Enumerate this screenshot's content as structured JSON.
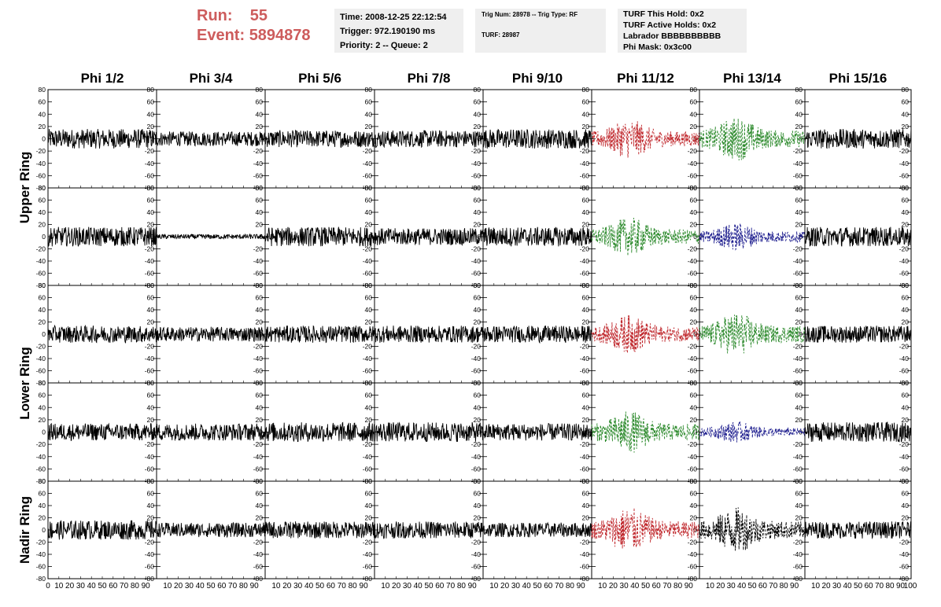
{
  "header": {
    "run_label": "Run:",
    "run_value": "55",
    "event_label": "Event:",
    "event_value": "5894878",
    "time": "Time: 2008-12-25 22:12:54",
    "trigger": "Trigger: 972.190190 ms",
    "priority": "Priority: 2 -- Queue: 2",
    "trig_num": "Trig Num: 28978 -- Trig Type: RF",
    "turf_num": "TURF: 28987",
    "turf_this_hold": "TURF This Hold: 0x2",
    "turf_active_holds": "TURF Active Holds: 0x2",
    "labrador": "Labrador BBBBBBBBBB",
    "phi_mask": "Phi Mask: 0x3c00"
  },
  "colors": {
    "run_text": "#cd5c5c",
    "info_bg": "#efefef",
    "trace_default": "#000000",
    "trace_red": "#c0282d",
    "trace_green": "#2e8b2e",
    "trace_blue": "#1f1f8f"
  },
  "chart_data": {
    "type": "line",
    "columns": [
      "Phi 1/2",
      "Phi 3/4",
      "Phi 5/6",
      "Phi 7/8",
      "Phi 9/10",
      "Phi 11/12",
      "Phi 13/14",
      "Phi 15/16"
    ],
    "row_labels": [
      {
        "text": "Upper Ring",
        "rows": [
          0,
          1
        ]
      },
      {
        "text": "Lower Ring",
        "rows": [
          2,
          3
        ]
      },
      {
        "text": "Nadir Ring",
        "rows": [
          4
        ]
      }
    ],
    "xlim": [
      0,
      100
    ],
    "ylim": [
      -80,
      80
    ],
    "y_ticks": [
      -80,
      -60,
      -40,
      -20,
      0,
      20,
      40,
      60,
      80
    ],
    "x_tick_labels_first": [
      "0",
      "10",
      "20",
      "30",
      "40",
      "50",
      "60",
      "70",
      "80",
      "90"
    ],
    "x_tick_labels_rest": [
      "10",
      "20",
      "30",
      "40",
      "50",
      "60",
      "70",
      "80",
      "90"
    ],
    "x_tick_label_last": "100",
    "panels": [
      [
        {
          "amp": 16,
          "color": "black",
          "dashed": false
        },
        {
          "amp": 12,
          "color": "black",
          "dashed": false
        },
        {
          "amp": 14,
          "color": "black",
          "dashed": false
        },
        {
          "amp": 14,
          "color": "black",
          "dashed": false
        },
        {
          "amp": 16,
          "color": "black",
          "dashed": false
        },
        {
          "amp": 22,
          "color": "red",
          "dashed": true
        },
        {
          "amp": 25,
          "color": "green",
          "dashed": true
        },
        {
          "amp": 16,
          "color": "black",
          "dashed": false
        }
      ],
      [
        {
          "amp": 16,
          "color": "black",
          "dashed": false
        },
        {
          "amp": 4,
          "color": "black",
          "dashed": false
        },
        {
          "amp": 16,
          "color": "black",
          "dashed": false
        },
        {
          "amp": 14,
          "color": "black",
          "dashed": false
        },
        {
          "amp": 16,
          "color": "black",
          "dashed": false
        },
        {
          "amp": 22,
          "color": "green",
          "dashed": true
        },
        {
          "amp": 16,
          "color": "blue",
          "dashed": true
        },
        {
          "amp": 16,
          "color": "black",
          "dashed": false
        }
      ],
      [
        {
          "amp": 14,
          "color": "black",
          "dashed": false
        },
        {
          "amp": 12,
          "color": "black",
          "dashed": false
        },
        {
          "amp": 14,
          "color": "black",
          "dashed": false
        },
        {
          "amp": 14,
          "color": "black",
          "dashed": false
        },
        {
          "amp": 14,
          "color": "black",
          "dashed": false
        },
        {
          "amp": 22,
          "color": "red",
          "dashed": true
        },
        {
          "amp": 25,
          "color": "green",
          "dashed": true
        },
        {
          "amp": 14,
          "color": "black",
          "dashed": false
        }
      ],
      [
        {
          "amp": 14,
          "color": "black",
          "dashed": false
        },
        {
          "amp": 14,
          "color": "black",
          "dashed": false
        },
        {
          "amp": 16,
          "color": "black",
          "dashed": false
        },
        {
          "amp": 16,
          "color": "black",
          "dashed": false
        },
        {
          "amp": 14,
          "color": "black",
          "dashed": false
        },
        {
          "amp": 24,
          "color": "green",
          "dashed": true
        },
        {
          "amp": 12,
          "color": "blue",
          "dashed": true
        },
        {
          "amp": 16,
          "color": "black",
          "dashed": false
        }
      ],
      [
        {
          "amp": 16,
          "color": "black",
          "dashed": false
        },
        {
          "amp": 12,
          "color": "black",
          "dashed": false
        },
        {
          "amp": 14,
          "color": "black",
          "dashed": false
        },
        {
          "amp": 14,
          "color": "black",
          "dashed": false
        },
        {
          "amp": 12,
          "color": "black",
          "dashed": false
        },
        {
          "amp": 26,
          "color": "red",
          "dashed": true
        },
        {
          "amp": 26,
          "color": "black",
          "dashed": true
        },
        {
          "amp": 14,
          "color": "black",
          "dashed": false
        }
      ]
    ]
  }
}
